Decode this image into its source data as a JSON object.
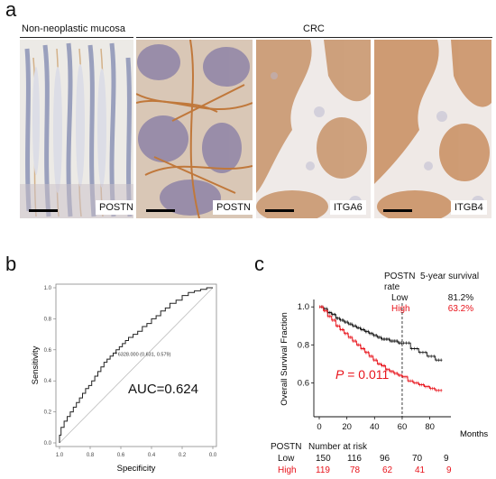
{
  "panel_a": {
    "letter": "a",
    "group_left": "Non-neoplastic mucosa",
    "group_right": "CRC",
    "images": [
      {
        "stain": "POSTN"
      },
      {
        "stain": "POSTN"
      },
      {
        "stain": "ITGA6"
      },
      {
        "stain": "ITGB4"
      }
    ]
  },
  "panel_b": {
    "letter": "b",
    "chart_data": {
      "type": "line",
      "title": "",
      "xlabel": "Specificity",
      "ylabel": "Sensitivity",
      "x_ticks": [
        "1.0",
        "0.8",
        "0.6",
        "0.4",
        "0.2",
        "0.0"
      ],
      "y_ticks": [
        "0.0",
        "0.2",
        "0.4",
        "0.6",
        "0.8",
        "1.0"
      ],
      "xlim": [
        1.0,
        0.0
      ],
      "ylim": [
        0.0,
        1.0
      ],
      "grid": false,
      "annotation_point": "6328.000 (0.631, 0.579)",
      "auc_label": "AUC=0.624",
      "series": [
        {
          "specificity": [
            1.0,
            1.0,
            0.99,
            0.99,
            0.97,
            0.97,
            0.95,
            0.95,
            0.93,
            0.93,
            0.91,
            0.91,
            0.89,
            0.89,
            0.87,
            0.87,
            0.85,
            0.85,
            0.83,
            0.83,
            0.81,
            0.81,
            0.79,
            0.79,
            0.77,
            0.77,
            0.75,
            0.75,
            0.73,
            0.73,
            0.71,
            0.71,
            0.69,
            0.69,
            0.67,
            0.67,
            0.65,
            0.65,
            0.631,
            0.631,
            0.61,
            0.61,
            0.59,
            0.59,
            0.57,
            0.57,
            0.55,
            0.55,
            0.52,
            0.52,
            0.49,
            0.49,
            0.46,
            0.46,
            0.43,
            0.43,
            0.4,
            0.4,
            0.37,
            0.37,
            0.34,
            0.34,
            0.31,
            0.31,
            0.28,
            0.28,
            0.24,
            0.24,
            0.2,
            0.2,
            0.16,
            0.16,
            0.12,
            0.12,
            0.08,
            0.08,
            0.04,
            0.04,
            0.0
          ],
          "sensitivity": [
            0.0,
            0.05,
            0.05,
            0.1,
            0.1,
            0.14,
            0.14,
            0.17,
            0.17,
            0.2,
            0.2,
            0.23,
            0.23,
            0.26,
            0.26,
            0.29,
            0.29,
            0.32,
            0.32,
            0.35,
            0.35,
            0.37,
            0.37,
            0.4,
            0.4,
            0.43,
            0.43,
            0.46,
            0.46,
            0.49,
            0.49,
            0.52,
            0.52,
            0.54,
            0.54,
            0.56,
            0.56,
            0.579,
            0.579,
            0.6,
            0.6,
            0.62,
            0.62,
            0.64,
            0.64,
            0.66,
            0.66,
            0.68,
            0.68,
            0.7,
            0.7,
            0.72,
            0.72,
            0.75,
            0.75,
            0.77,
            0.77,
            0.8,
            0.8,
            0.82,
            0.82,
            0.85,
            0.85,
            0.87,
            0.87,
            0.9,
            0.9,
            0.92,
            0.92,
            0.95,
            0.95,
            0.97,
            0.97,
            0.98,
            0.98,
            0.99,
            0.99,
            1.0,
            1.0
          ]
        }
      ]
    }
  },
  "panel_c": {
    "letter": "c",
    "legend_header_left": "POSTN",
    "legend_header_right": "5-year survival rate",
    "legend_rows": [
      {
        "name": "Low",
        "rate": "81.2%",
        "color": "#111111"
      },
      {
        "name": "High",
        "rate": "63.2%",
        "color": "#e8141c"
      }
    ],
    "p_label": "P",
    "p_value": " = 0.011",
    "risk_header": "POSTN",
    "risk_title": "Number at risk",
    "risk_rows": [
      {
        "name": "Low",
        "values": [
          "150",
          "116",
          "96",
          "70",
          "9"
        ],
        "color": "#111111"
      },
      {
        "name": "High",
        "values": [
          "119",
          "78",
          "62",
          "41",
          "9"
        ],
        "color": "#e8141c"
      }
    ],
    "chart_data": {
      "type": "line",
      "title": "",
      "xlabel": "Months",
      "ylabel": "Overall Survival Fraction",
      "x_ticks": [
        "0",
        "20",
        "40",
        "60",
        "80"
      ],
      "y_ticks": [
        "0.6",
        "0.8",
        "1.0"
      ],
      "xlim": [
        0,
        92
      ],
      "ylim": [
        0.45,
        1.02
      ],
      "reference_line_x": 60,
      "series": [
        {
          "name": "Low",
          "color": "#111111",
          "x": [
            0,
            3,
            6,
            9,
            12,
            15,
            18,
            21,
            24,
            27,
            30,
            33,
            36,
            39,
            42,
            45,
            48,
            51,
            54,
            57,
            60,
            66,
            72,
            78,
            84,
            89
          ],
          "y": [
            1.0,
            0.99,
            0.97,
            0.96,
            0.94,
            0.93,
            0.92,
            0.91,
            0.9,
            0.89,
            0.88,
            0.87,
            0.86,
            0.85,
            0.84,
            0.83,
            0.83,
            0.82,
            0.82,
            0.81,
            0.81,
            0.78,
            0.76,
            0.74,
            0.72,
            0.72
          ]
        },
        {
          "name": "High",
          "color": "#e8141c",
          "x": [
            0,
            3,
            6,
            9,
            12,
            15,
            18,
            21,
            24,
            27,
            30,
            33,
            36,
            39,
            42,
            45,
            48,
            51,
            54,
            57,
            60,
            64,
            68,
            72,
            76,
            80,
            84,
            89
          ],
          "y": [
            1.0,
            0.98,
            0.95,
            0.93,
            0.9,
            0.88,
            0.86,
            0.84,
            0.82,
            0.8,
            0.78,
            0.76,
            0.74,
            0.72,
            0.7,
            0.69,
            0.67,
            0.66,
            0.65,
            0.64,
            0.632,
            0.61,
            0.6,
            0.59,
            0.58,
            0.57,
            0.56,
            0.56
          ]
        }
      ]
    }
  }
}
